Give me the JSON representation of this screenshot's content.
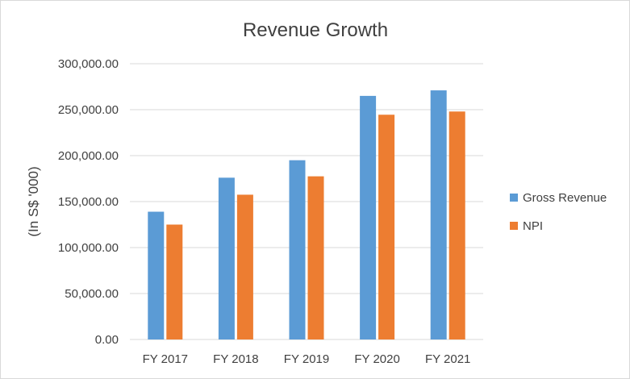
{
  "chart_data": {
    "type": "bar",
    "title": "Revenue Growth",
    "xlabel": "",
    "ylabel": "(In S$ '000)",
    "categories": [
      "FY 2017",
      "FY 2018",
      "FY 2019",
      "FY 2020",
      "FY 2021"
    ],
    "series": [
      {
        "name": "Gross Revenue",
        "color": "#5B9BD5",
        "values": [
          139000,
          176000,
          195000,
          265000,
          271000
        ]
      },
      {
        "name": "NPI",
        "color": "#ED7D31",
        "values": [
          125000,
          157500,
          177500,
          244500,
          248000
        ]
      }
    ],
    "ylim": [
      0,
      300000
    ],
    "yticks": [
      "0.00",
      "50,000.00",
      "100,000.00",
      "150,000.00",
      "200,000.00",
      "250,000.00",
      "300,000.00"
    ],
    "grid": true,
    "legend_position": "right"
  }
}
